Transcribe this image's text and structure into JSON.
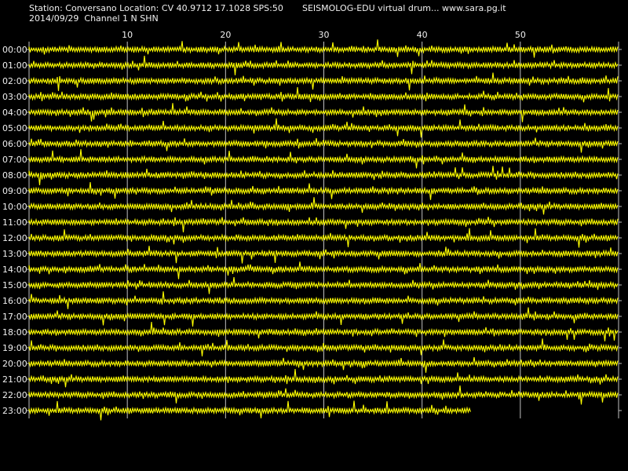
{
  "header": {
    "station_line": "Station: Conversano Location: CV 40.9712 17.1028 SPS:50",
    "source_line": "SEISMOLOG-EDU virtual drum... www.sara.pg.it",
    "date_line": "2014/09/29  Channel 1 N SHN"
  },
  "colors": {
    "background": "#000000",
    "trace": "#ffff00",
    "grid": "#bfbfbf",
    "text": "#f0f0f0"
  },
  "chart_data": {
    "type": "line",
    "title": "",
    "xlabel": "",
    "ylabel": "",
    "xlim": [
      0,
      60
    ],
    "x_ticks": [
      10,
      20,
      30,
      40,
      50
    ],
    "grid": true,
    "rows": [
      {
        "label": "00:00",
        "minutes_recorded": 60
      },
      {
        "label": "01:00",
        "minutes_recorded": 60
      },
      {
        "label": "02:00",
        "minutes_recorded": 60
      },
      {
        "label": "03:00",
        "minutes_recorded": 60
      },
      {
        "label": "04:00",
        "minutes_recorded": 60
      },
      {
        "label": "05:00",
        "minutes_recorded": 60
      },
      {
        "label": "06:00",
        "minutes_recorded": 60
      },
      {
        "label": "07:00",
        "minutes_recorded": 60
      },
      {
        "label": "08:00",
        "minutes_recorded": 60
      },
      {
        "label": "09:00",
        "minutes_recorded": 60
      },
      {
        "label": "10:00",
        "minutes_recorded": 60
      },
      {
        "label": "11:00",
        "minutes_recorded": 60
      },
      {
        "label": "12:00",
        "minutes_recorded": 60
      },
      {
        "label": "13:00",
        "minutes_recorded": 60
      },
      {
        "label": "14:00",
        "minutes_recorded": 60
      },
      {
        "label": "15:00",
        "minutes_recorded": 60
      },
      {
        "label": "16:00",
        "minutes_recorded": 60
      },
      {
        "label": "17:00",
        "minutes_recorded": 60
      },
      {
        "label": "18:00",
        "minutes_recorded": 60
      },
      {
        "label": "19:00",
        "minutes_recorded": 60
      },
      {
        "label": "20:00",
        "minutes_recorded": 60
      },
      {
        "label": "21:00",
        "minutes_recorded": 60
      },
      {
        "label": "22:00",
        "minutes_recorded": 60
      },
      {
        "label": "23:00",
        "minutes_recorded": 45
      }
    ]
  }
}
